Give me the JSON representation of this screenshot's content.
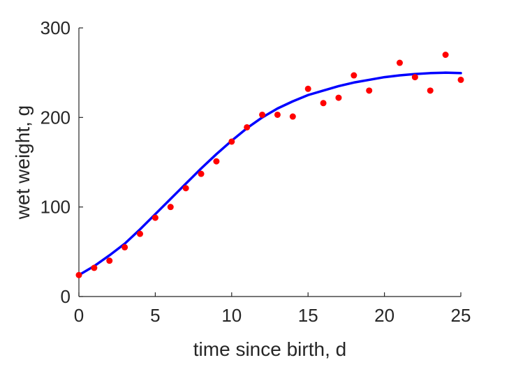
{
  "chart_data": {
    "type": "scatter",
    "title": "",
    "xlabel": "time since birth, d",
    "ylabel": "wet weight, g",
    "xlim": [
      0,
      25
    ],
    "ylim": [
      0,
      300
    ],
    "xticks": [
      0,
      5,
      10,
      15,
      20,
      25
    ],
    "yticks": [
      0,
      100,
      200,
      300
    ],
    "xtick_labels": [
      "0",
      "5",
      "10",
      "15",
      "20",
      "25"
    ],
    "ytick_labels": [
      "0",
      "100",
      "200",
      "300"
    ],
    "grid": false,
    "legend": "none",
    "series": [
      {
        "kind": "scatter",
        "color": "#ff0000",
        "x": [
          0,
          1,
          2,
          3,
          4,
          5,
          6,
          7,
          8,
          9,
          10,
          11,
          12,
          13,
          14,
          15,
          16,
          17,
          18,
          19,
          21,
          22,
          23,
          24,
          25
        ],
        "y": [
          24,
          32,
          40,
          55,
          70,
          88,
          100,
          121,
          137,
          151,
          173,
          189,
          203,
          203,
          201,
          232,
          216,
          222,
          247,
          230,
          261,
          245,
          230,
          270,
          242
        ]
      },
      {
        "kind": "line",
        "color": "#0000ff",
        "x": [
          0,
          1,
          2,
          3,
          4,
          5,
          6,
          7,
          8,
          9,
          10,
          11,
          12,
          13,
          14,
          15,
          16,
          17,
          18,
          19,
          20,
          21,
          22,
          23,
          24,
          25
        ],
        "y": [
          24,
          34,
          46,
          59,
          75,
          92,
          109,
          126,
          143,
          159,
          174,
          188,
          200,
          210,
          218,
          225,
          230,
          235,
          239,
          242,
          245,
          247,
          248.5,
          249.5,
          250,
          249.5
        ]
      }
    ]
  }
}
